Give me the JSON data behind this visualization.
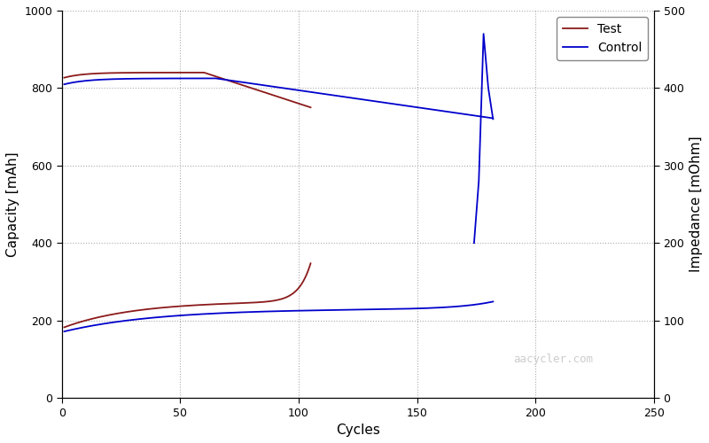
{
  "xlabel": "Cycles",
  "ylabel_left": "Capacity [mAh]",
  "ylabel_right": "Impedance [mOhm]",
  "xlim": [
    0,
    250
  ],
  "ylim_left": [
    0,
    1000
  ],
  "ylim_right": [
    0,
    500
  ],
  "xticks": [
    0,
    50,
    100,
    150,
    200,
    250
  ],
  "yticks_left": [
    0,
    200,
    400,
    600,
    800,
    1000
  ],
  "yticks_right": [
    0,
    100,
    200,
    300,
    400,
    500
  ],
  "test_color": "#8B1A1A",
  "control_color": "#0000CC",
  "bg_color": "#ffffff",
  "watermark": "aacycler.com",
  "watermark_color": "#cccccc",
  "grid_color": "#aaaaaa"
}
